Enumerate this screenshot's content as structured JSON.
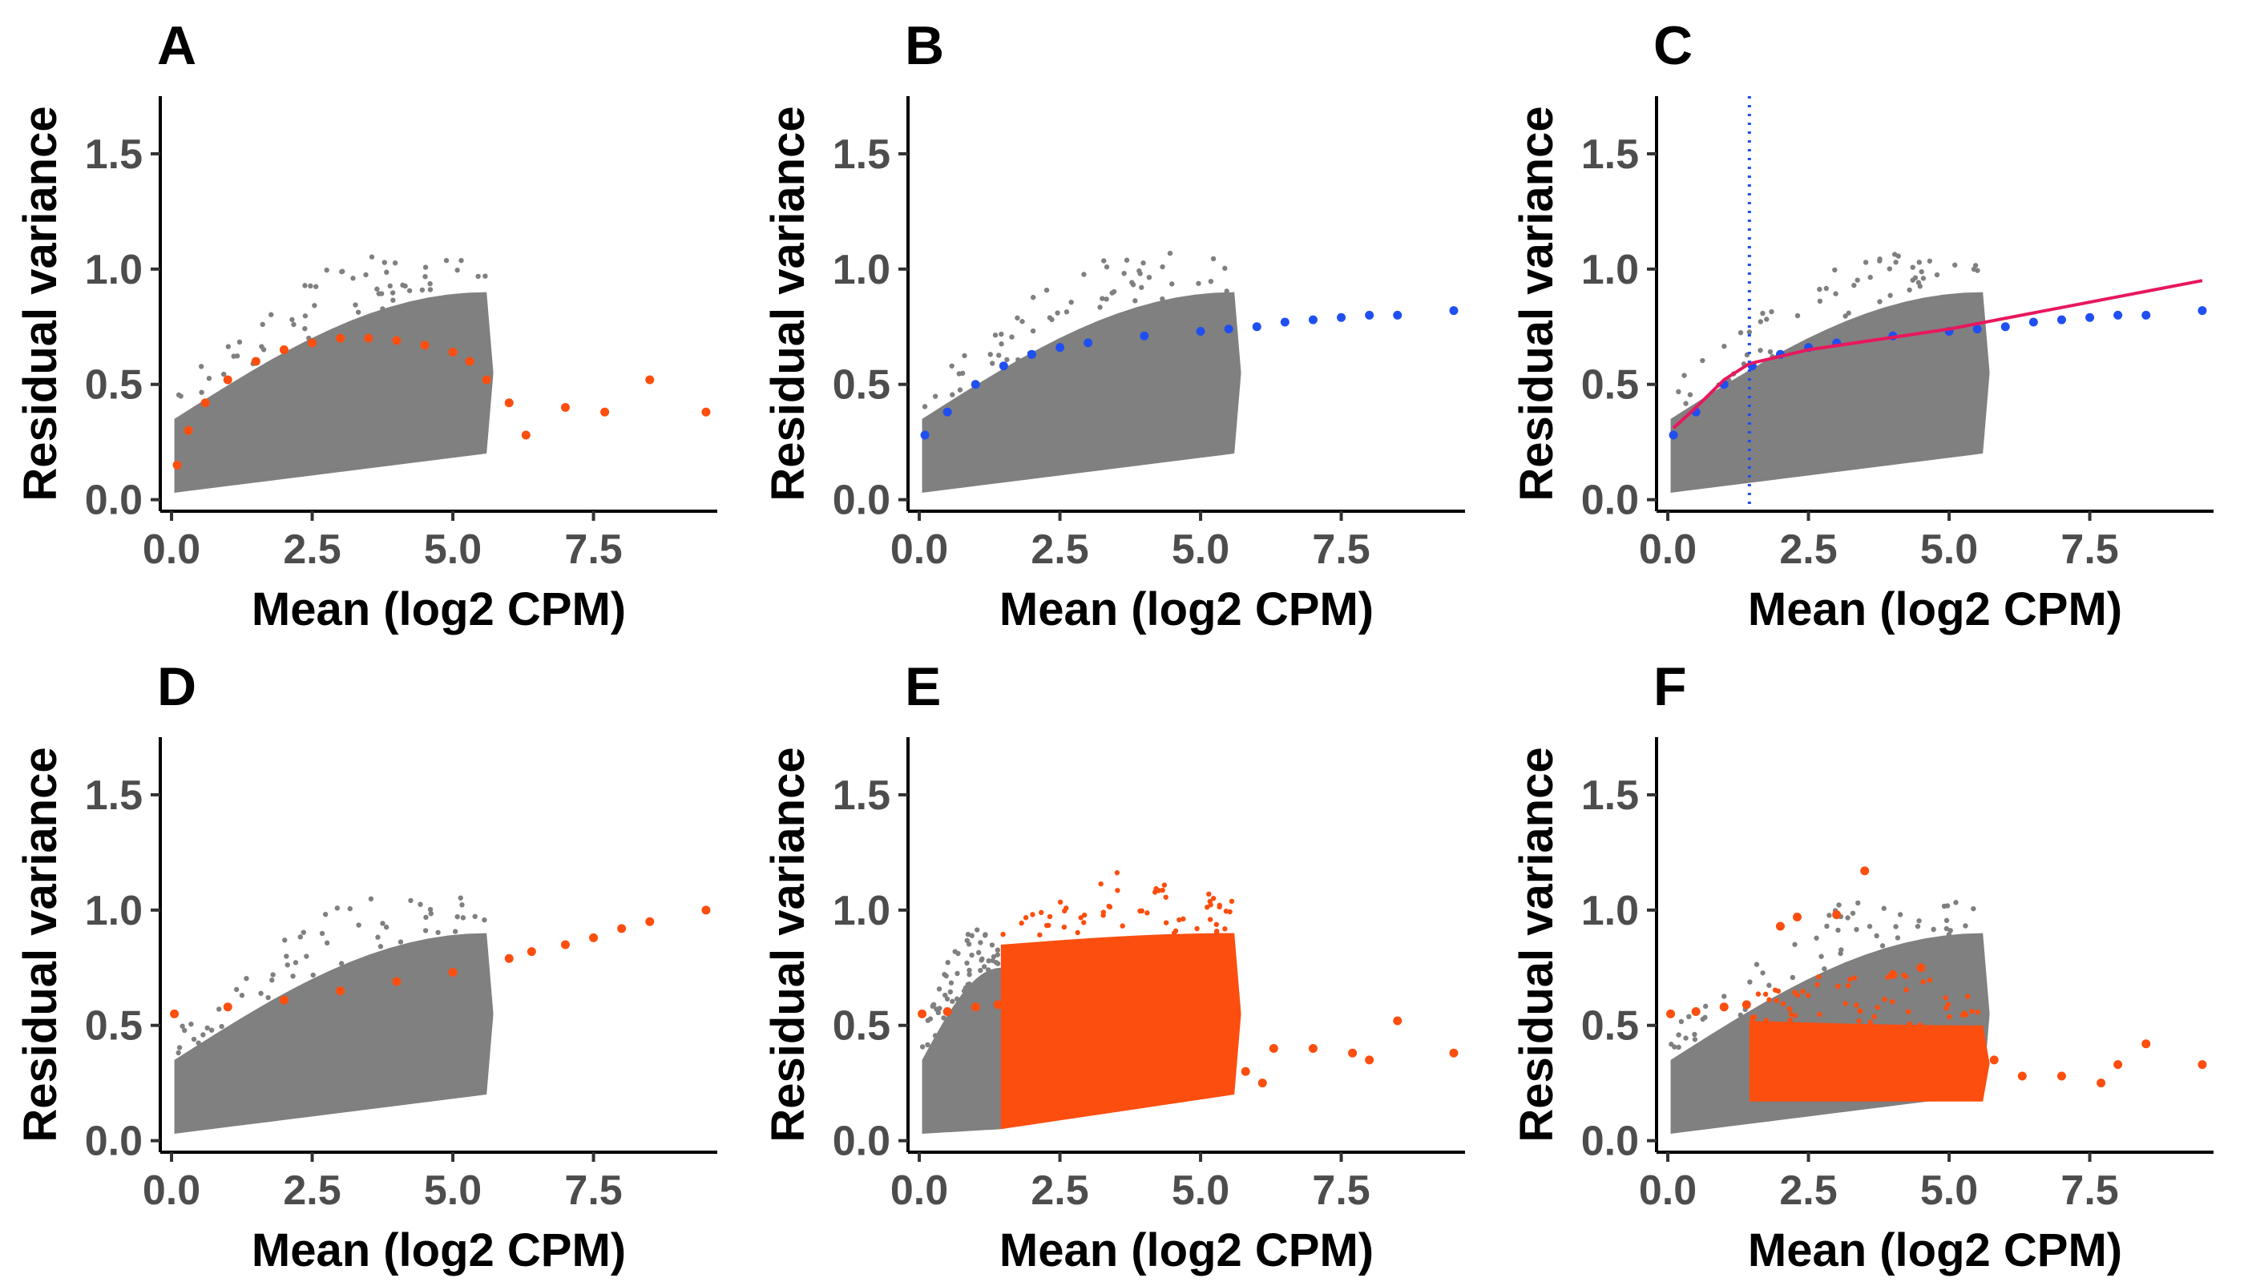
{
  "chart_data": [
    {
      "panel": "A",
      "type": "scatter",
      "xlabel": "Mean (log2 CPM)",
      "ylabel": "Residual variance",
      "xlim": [
        -0.2,
        9.7
      ],
      "ylim": [
        -0.05,
        1.75
      ],
      "xticks": [
        "0.0",
        "2.5",
        "5.0",
        "7.5"
      ],
      "xtick_values": [
        0,
        2.5,
        5,
        7.5
      ],
      "yticks": [
        "0.0",
        "0.5",
        "1.0",
        "1.5"
      ],
      "ytick_values": [
        0,
        0.5,
        1.0,
        1.5
      ],
      "grid": false,
      "background_cloud": {
        "color": "#808080",
        "x_range": [
          0.05,
          5.6
        ],
        "lower_edge_y": [
          0.03,
          0.2
        ],
        "upper_edge_y": [
          0.35,
          0.9
        ]
      },
      "series": [
        {
          "color": "#fc4e0f",
          "style": "points",
          "x": [
            0.1,
            0.3,
            0.6,
            1.0,
            1.5,
            2.0,
            2.5,
            3.0,
            3.5,
            4.0,
            4.5,
            5.0,
            5.3,
            5.6,
            6.0,
            6.3,
            7.0,
            7.7,
            8.5,
            9.5
          ],
          "y": [
            0.15,
            0.3,
            0.42,
            0.52,
            0.6,
            0.65,
            0.68,
            0.7,
            0.7,
            0.69,
            0.67,
            0.64,
            0.6,
            0.52,
            0.42,
            0.28,
            0.4,
            0.38,
            0.52,
            0.38
          ]
        }
      ]
    },
    {
      "panel": "B",
      "type": "scatter",
      "xlabel": "Mean (log2 CPM)",
      "ylabel": "Residual variance",
      "xlim": [
        -0.2,
        9.7
      ],
      "ylim": [
        -0.05,
        1.75
      ],
      "xticks": [
        "0.0",
        "2.5",
        "5.0",
        "7.5"
      ],
      "xtick_values": [
        0,
        2.5,
        5,
        7.5
      ],
      "yticks": [
        "0.0",
        "0.5",
        "1.0",
        "1.5"
      ],
      "ytick_values": [
        0,
        0.5,
        1.0,
        1.5
      ],
      "grid": false,
      "background_cloud": {
        "color": "#808080",
        "x_range": [
          0.05,
          5.6
        ],
        "lower_edge_y": [
          0.03,
          0.2
        ],
        "upper_edge_y": [
          0.35,
          0.9
        ]
      },
      "series": [
        {
          "color": "#1f4ff0",
          "style": "points",
          "x": [
            0.1,
            0.5,
            1.0,
            1.5,
            2.0,
            2.5,
            3.0,
            4.0,
            5.0,
            5.5,
            6.0,
            6.5,
            7.0,
            7.5,
            8.0,
            8.5,
            9.5
          ],
          "y": [
            0.28,
            0.38,
            0.5,
            0.58,
            0.63,
            0.66,
            0.68,
            0.71,
            0.73,
            0.74,
            0.75,
            0.77,
            0.78,
            0.79,
            0.8,
            0.8,
            0.82
          ]
        }
      ]
    },
    {
      "panel": "C",
      "type": "scatter",
      "xlabel": "Mean (log2 CPM)",
      "ylabel": "Residual variance",
      "xlim": [
        -0.2,
        9.7
      ],
      "ylim": [
        -0.05,
        1.75
      ],
      "xticks": [
        "0.0",
        "2.5",
        "5.0",
        "7.5"
      ],
      "xtick_values": [
        0,
        2.5,
        5,
        7.5
      ],
      "yticks": [
        "0.0",
        "0.5",
        "1.0",
        "1.5"
      ],
      "ytick_values": [
        0,
        0.5,
        1.0,
        1.5
      ],
      "grid": false,
      "vline": {
        "x": 1.45,
        "color": "#1f4ff0",
        "style": "dotted"
      },
      "background_cloud": {
        "color": "#808080",
        "x_range": [
          0.05,
          5.6
        ],
        "lower_edge_y": [
          0.03,
          0.2
        ],
        "upper_edge_y": [
          0.35,
          0.9
        ]
      },
      "series": [
        {
          "color": "#1f4ff0",
          "style": "points",
          "x": [
            0.1,
            0.5,
            1.0,
            1.5,
            2.0,
            2.5,
            3.0,
            4.0,
            5.0,
            5.5,
            6.0,
            6.5,
            7.0,
            7.5,
            8.0,
            8.5,
            9.5
          ],
          "y": [
            0.28,
            0.38,
            0.5,
            0.58,
            0.63,
            0.66,
            0.68,
            0.71,
            0.73,
            0.74,
            0.75,
            0.77,
            0.78,
            0.79,
            0.8,
            0.8,
            0.82
          ]
        },
        {
          "color": "#e8175d",
          "style": "line",
          "x": [
            0.1,
            0.5,
            1.0,
            1.45,
            2.5,
            5.0,
            9.5
          ],
          "y": [
            0.31,
            0.4,
            0.52,
            0.59,
            0.65,
            0.74,
            0.95
          ]
        }
      ]
    },
    {
      "panel": "D",
      "type": "scatter",
      "xlabel": "Mean (log2 CPM)",
      "ylabel": "Residual variance",
      "xlim": [
        -0.2,
        9.7
      ],
      "ylim": [
        -0.05,
        1.75
      ],
      "xticks": [
        "0.0",
        "2.5",
        "5.0",
        "7.5"
      ],
      "xtick_values": [
        0,
        2.5,
        5,
        7.5
      ],
      "yticks": [
        "0.0",
        "0.5",
        "1.0",
        "1.5"
      ],
      "ytick_values": [
        0,
        0.5,
        1.0,
        1.5
      ],
      "grid": false,
      "background_cloud": {
        "color": "#808080",
        "x_range": [
          0.05,
          5.6
        ],
        "lower_edge_y": [
          0.03,
          0.2
        ],
        "upper_edge_y": [
          0.35,
          0.9
        ]
      },
      "series": [
        {
          "color": "#fc4e0f",
          "style": "points",
          "x": [
            0.05,
            1.0,
            2.0,
            3.0,
            4.0,
            5.0,
            6.0,
            6.4,
            7.0,
            7.5,
            8.0,
            8.5,
            9.5
          ],
          "y": [
            0.55,
            0.58,
            0.61,
            0.65,
            0.69,
            0.73,
            0.79,
            0.82,
            0.85,
            0.88,
            0.92,
            0.95,
            1.0
          ]
        }
      ]
    },
    {
      "panel": "E",
      "type": "scatter",
      "xlabel": "Mean (log2 CPM)",
      "ylabel": "Residual variance",
      "xlim": [
        -0.2,
        9.7
      ],
      "ylim": [
        -0.05,
        1.75
      ],
      "xticks": [
        "0.0",
        "2.5",
        "5.0",
        "7.5"
      ],
      "xtick_values": [
        0,
        2.5,
        5,
        7.5
      ],
      "yticks": [
        "0.0",
        "0.5",
        "1.0",
        "1.5"
      ],
      "ytick_values": [
        0,
        0.5,
        1.0,
        1.5
      ],
      "grid": false,
      "background_cloud": {
        "color": "#808080",
        "x_range": [
          0.05,
          1.45
        ],
        "lower_edge_y": [
          0.03,
          0.05
        ],
        "upper_edge_y": [
          0.35,
          0.75
        ]
      },
      "highlight_cloud": {
        "color": "#fc4e0f",
        "x_range": [
          1.45,
          5.6
        ],
        "lower_edge_y": [
          0.05,
          0.2
        ],
        "upper_edge_y": [
          0.85,
          0.9
        ]
      },
      "series": [
        {
          "color": "#fc4e0f",
          "style": "points",
          "x": [
            0.05,
            0.5,
            1.0,
            1.4
          ],
          "y": [
            0.55,
            0.56,
            0.58,
            0.59
          ]
        },
        {
          "color": "#fc4e0f",
          "style": "points",
          "x": [
            5.8,
            6.1,
            6.3,
            7.0,
            7.7,
            8.0,
            8.5,
            9.5
          ],
          "y": [
            0.3,
            0.25,
            0.4,
            0.4,
            0.38,
            0.35,
            0.52,
            0.38
          ]
        }
      ]
    },
    {
      "panel": "F",
      "type": "scatter",
      "xlabel": "Mean (log2 CPM)",
      "ylabel": "Residual variance",
      "xlim": [
        -0.2,
        9.7
      ],
      "ylim": [
        -0.05,
        1.75
      ],
      "xticks": [
        "0.0",
        "2.5",
        "5.0",
        "7.5"
      ],
      "xtick_values": [
        0,
        2.5,
        5,
        7.5
      ],
      "yticks": [
        "0.0",
        "0.5",
        "1.0",
        "1.5"
      ],
      "ytick_values": [
        0,
        0.5,
        1.0,
        1.5
      ],
      "grid": false,
      "background_cloud": {
        "color": "#808080",
        "x_range": [
          0.05,
          5.6
        ],
        "lower_edge_y": [
          0.03,
          0.2
        ],
        "upper_edge_y": [
          0.35,
          0.9
        ]
      },
      "highlight_cloud": {
        "color": "#fc4e0f",
        "x_range": [
          1.45,
          5.6
        ],
        "lower_edge_y": [
          0.17,
          0.17
        ],
        "upper_edge_y": [
          0.52,
          0.5
        ]
      },
      "series": [
        {
          "color": "#fc4e0f",
          "style": "points",
          "x": [
            0.05,
            0.5,
            1.0,
            1.4
          ],
          "y": [
            0.55,
            0.56,
            0.58,
            0.59
          ]
        },
        {
          "color": "#fc4e0f",
          "style": "points",
          "x": [
            2.0,
            2.3,
            3.0,
            3.5,
            4.0,
            4.5,
            5.5,
            5.8,
            6.3,
            7.0,
            7.7,
            8.0,
            8.5,
            9.5
          ],
          "y": [
            0.93,
            0.97,
            0.98,
            1.17,
            0.72,
            0.75,
            0.45,
            0.35,
            0.28,
            0.28,
            0.25,
            0.33,
            0.42,
            0.33
          ]
        }
      ]
    }
  ]
}
